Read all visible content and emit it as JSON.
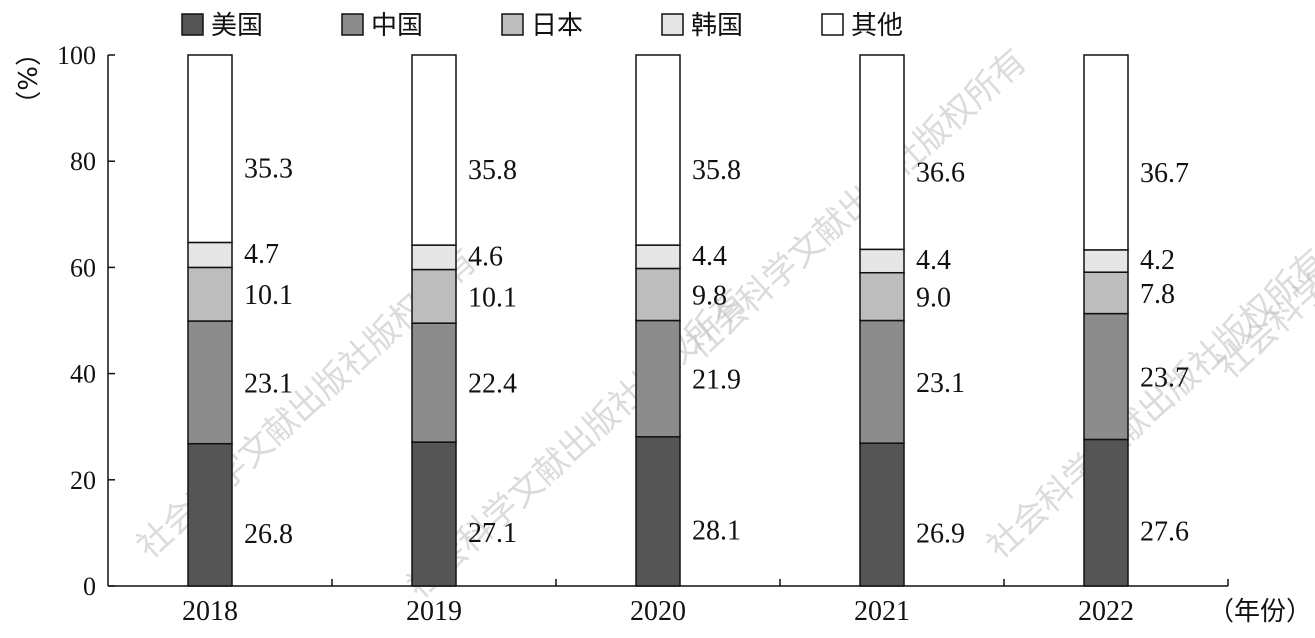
{
  "chart_data": {
    "type": "bar",
    "stacked": true,
    "categories": [
      "2018",
      "2019",
      "2020",
      "2021",
      "2022"
    ],
    "series": [
      {
        "name": "美国",
        "color": "#555555",
        "values": [
          26.8,
          27.1,
          28.1,
          26.9,
          27.6
        ]
      },
      {
        "name": "中国",
        "color": "#8c8c8c",
        "values": [
          23.1,
          22.4,
          21.9,
          23.1,
          23.7
        ]
      },
      {
        "name": "日本",
        "color": "#bdbdbd",
        "values": [
          10.1,
          10.1,
          9.8,
          9.0,
          7.8
        ]
      },
      {
        "name": "韩国",
        "color": "#e6e6e6",
        "values": [
          4.7,
          4.6,
          4.4,
          4.4,
          4.2
        ]
      },
      {
        "name": "其他",
        "color": "#ffffff",
        "values": [
          35.3,
          35.8,
          35.8,
          36.6,
          36.7
        ]
      }
    ],
    "ylim": [
      0,
      100
    ],
    "yticks": [
      "0",
      "20",
      "40",
      "60",
      "80",
      "100"
    ],
    "ylabel": "（%）",
    "xlabel": "（年份）",
    "legend_position": "top",
    "grid": false
  },
  "watermark": "社会科学文献出版社版权所有"
}
